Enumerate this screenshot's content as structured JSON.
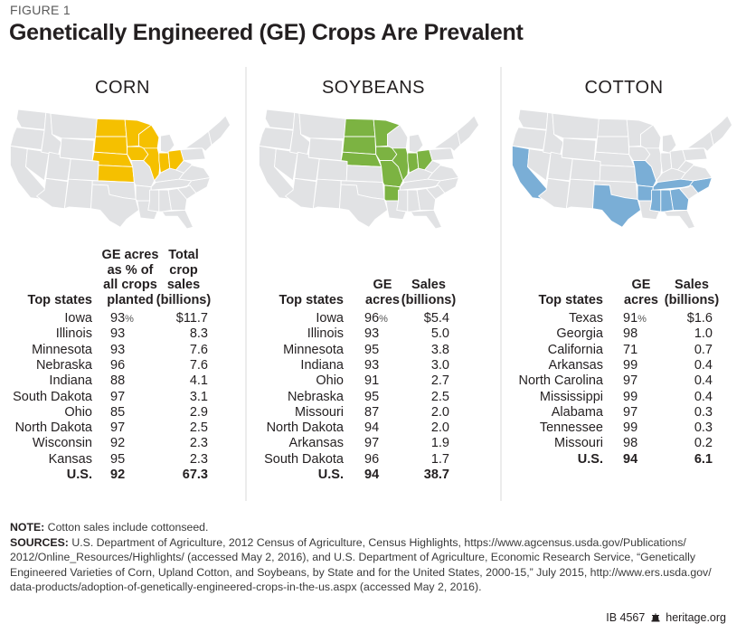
{
  "figure_label": "FIGURE 1",
  "title": "Genetically Engineered (GE) Crops Are Prevalent",
  "colors": {
    "corn": "#f5c000",
    "soybeans": "#7cb342",
    "cotton": "#7aaed6",
    "base_state": "#e1e2e4",
    "state_border": "#ffffff",
    "divider": "#ececec"
  },
  "chart_data": [
    {
      "type": "table",
      "title": "CORN",
      "highlighted_states": [
        "North Dakota",
        "South Dakota",
        "Nebraska",
        "Kansas",
        "Minnesota",
        "Iowa",
        "Wisconsin",
        "Illinois",
        "Indiana",
        "Ohio"
      ],
      "columns": [
        "Top states",
        "GE acres as % of all crops planted",
        "Total crop sales (billions)"
      ],
      "header_lines": [
        [
          "Top states"
        ],
        [
          "GE acres",
          "as % of",
          "all crops",
          "planted"
        ],
        [
          "Total",
          "crop",
          "sales",
          "(billions)"
        ]
      ],
      "rows": [
        {
          "state": "Iowa",
          "ge": "93",
          "ge_suffix": "%",
          "sales": "$11.7"
        },
        {
          "state": "Illinois",
          "ge": "93",
          "ge_suffix": "",
          "sales": "8.3"
        },
        {
          "state": "Minnesota",
          "ge": "93",
          "ge_suffix": "",
          "sales": "7.6"
        },
        {
          "state": "Nebraska",
          "ge": "96",
          "ge_suffix": "",
          "sales": "7.6"
        },
        {
          "state": "Indiana",
          "ge": "88",
          "ge_suffix": "",
          "sales": "4.1"
        },
        {
          "state": "South Dakota",
          "ge": "97",
          "ge_suffix": "",
          "sales": "3.1"
        },
        {
          "state": "Ohio",
          "ge": "85",
          "ge_suffix": "",
          "sales": "2.9"
        },
        {
          "state": "North Dakota",
          "ge": "97",
          "ge_suffix": "",
          "sales": "2.5"
        },
        {
          "state": "Wisconsin",
          "ge": "92",
          "ge_suffix": "",
          "sales": "2.3"
        },
        {
          "state": "Kansas",
          "ge": "95",
          "ge_suffix": "",
          "sales": "2.3"
        }
      ],
      "total": {
        "state": "U.S.",
        "ge": "92",
        "sales": "67.3"
      }
    },
    {
      "type": "table",
      "title": "SOYBEANS",
      "highlighted_states": [
        "North Dakota",
        "South Dakota",
        "Nebraska",
        "Minnesota",
        "Iowa",
        "Missouri",
        "Arkansas",
        "Illinois",
        "Indiana",
        "Ohio"
      ],
      "columns": [
        "Top states",
        "GE acres",
        "Sales (billions)"
      ],
      "header_lines": [
        [
          "Top states"
        ],
        [
          "GE",
          "acres"
        ],
        [
          "Sales",
          "(billions)"
        ]
      ],
      "rows": [
        {
          "state": "Iowa",
          "ge": "96",
          "ge_suffix": "%",
          "sales": "$5.4"
        },
        {
          "state": "Illinois",
          "ge": "93",
          "ge_suffix": "",
          "sales": "5.0"
        },
        {
          "state": "Minnesota",
          "ge": "95",
          "ge_suffix": "",
          "sales": "3.8"
        },
        {
          "state": "Indiana",
          "ge": "93",
          "ge_suffix": "",
          "sales": "3.0"
        },
        {
          "state": "Ohio",
          "ge": "91",
          "ge_suffix": "",
          "sales": "2.7"
        },
        {
          "state": "Nebraska",
          "ge": "95",
          "ge_suffix": "",
          "sales": "2.5"
        },
        {
          "state": "Missouri",
          "ge": "87",
          "ge_suffix": "",
          "sales": "2.0"
        },
        {
          "state": "North Dakota",
          "ge": "94",
          "ge_suffix": "",
          "sales": "2.0"
        },
        {
          "state": "Arkansas",
          "ge": "97",
          "ge_suffix": "",
          "sales": "1.9"
        },
        {
          "state": "South Dakota",
          "ge": "96",
          "ge_suffix": "",
          "sales": "1.7"
        }
      ],
      "total": {
        "state": "U.S.",
        "ge": "94",
        "sales": "38.7"
      }
    },
    {
      "type": "table",
      "title": "COTTON",
      "highlighted_states": [
        "California",
        "Texas",
        "Missouri",
        "Arkansas",
        "Tennessee",
        "Mississippi",
        "Alabama",
        "Georgia",
        "North Carolina"
      ],
      "columns": [
        "Top states",
        "GE acres",
        "Sales (billions)"
      ],
      "header_lines": [
        [
          "Top states"
        ],
        [
          "GE",
          "acres"
        ],
        [
          "Sales",
          "(billions)"
        ]
      ],
      "rows": [
        {
          "state": "Texas",
          "ge": "91",
          "ge_suffix": "%",
          "sales": "$1.6"
        },
        {
          "state": "Georgia",
          "ge": "98",
          "ge_suffix": "",
          "sales": "1.0"
        },
        {
          "state": "California",
          "ge": "71",
          "ge_suffix": "",
          "sales": "0.7"
        },
        {
          "state": "Arkansas",
          "ge": "99",
          "ge_suffix": "",
          "sales": "0.4"
        },
        {
          "state": "North Carolina",
          "ge": "97",
          "ge_suffix": "",
          "sales": "0.4"
        },
        {
          "state": "Mississippi",
          "ge": "99",
          "ge_suffix": "",
          "sales": "0.4"
        },
        {
          "state": "Alabama",
          "ge": "97",
          "ge_suffix": "",
          "sales": "0.3"
        },
        {
          "state": "Tennessee",
          "ge": "99",
          "ge_suffix": "",
          "sales": "0.3"
        },
        {
          "state": "Missouri",
          "ge": "98",
          "ge_suffix": "",
          "sales": "0.2"
        }
      ],
      "total": {
        "state": "U.S.",
        "ge": "94",
        "sales": "6.1"
      }
    }
  ],
  "notes": {
    "note_label": "NOTE:",
    "note_text": " Cotton sales include cottonseed.",
    "sources_label": "SOURCES:",
    "sources_text": " U.S. Department of Agriculture, 2012 Census of Agriculture, Census Highlights, https://www.agcensus.usda.gov/Publications/ 2012/Online_Resources/Highlights/ (accessed May 2, 2016), and U.S. Department of Agriculture, Economic Research Service, “Genetically Engineered Varieties of Corn, Upland Cotton, and Soybeans, by State and for the United States, 2000-15,” July 2015, http://www.ers.usda.gov/ data-products/adoption-of-genetically-engineered-crops-in-the-us.aspx (accessed May 2, 2016)."
  },
  "footer": {
    "report_id": "IB 4567",
    "logo_icon": "liberty-bell-icon",
    "site": "heritage.org"
  }
}
